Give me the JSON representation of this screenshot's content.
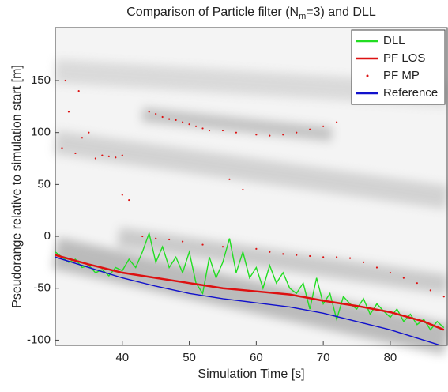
{
  "chart_data": {
    "type": "line",
    "title": [
      "Comparison of Particle filter (N",
      "m",
      "=3) and DLL"
    ],
    "x_label": "Simulation Time [s]",
    "y_label": "Pseudorange relative to simulation start [m]",
    "xlim": [
      30,
      88.5
    ],
    "ylim": [
      -105,
      201
    ],
    "xticks": [
      40,
      50,
      60,
      70,
      80
    ],
    "yticks": [
      -100,
      -50,
      0,
      50,
      100,
      150
    ],
    "legend": "upper right",
    "series": [
      {
        "name": "DLL",
        "color": "#22dd22",
        "style": "line",
        "x": [
          30,
          31,
          32,
          33,
          34,
          35,
          36,
          37,
          38,
          39,
          40,
          41,
          42,
          43,
          44,
          45,
          46,
          47,
          48,
          49,
          50,
          51,
          52,
          53,
          54,
          55,
          56,
          57,
          58,
          59,
          60,
          61,
          62,
          63,
          64,
          65,
          66,
          67,
          68,
          69,
          70,
          71,
          72,
          73,
          74,
          75,
          76,
          77,
          78,
          79,
          80,
          81,
          82,
          83,
          84,
          85,
          86,
          87,
          88
        ],
        "values": [
          -15,
          -20,
          -25,
          -22,
          -30,
          -28,
          -35,
          -32,
          -38,
          -30,
          -33,
          -22,
          -30,
          -15,
          3,
          -25,
          -10,
          -30,
          -20,
          -35,
          -15,
          -45,
          -55,
          -20,
          -40,
          -25,
          -2,
          -35,
          -15,
          -40,
          -30,
          -50,
          -28,
          -45,
          -35,
          -50,
          -55,
          -45,
          -70,
          -40,
          -65,
          -55,
          -80,
          -58,
          -65,
          -70,
          -60,
          -75,
          -65,
          -72,
          -78,
          -70,
          -82,
          -75,
          -85,
          -80,
          -90,
          -82,
          -88
        ]
      },
      {
        "name": "PF LOS",
        "color": "#dd1111",
        "style": "line",
        "x": [
          30,
          35,
          40,
          45,
          50,
          55,
          60,
          65,
          70,
          75,
          80,
          85,
          88
        ],
        "values": [
          -18,
          -27,
          -35,
          -40,
          -45,
          -50,
          -53,
          -56,
          -62,
          -67,
          -73,
          -82,
          -90
        ]
      },
      {
        "name": "PF MP",
        "color": "#dd1111",
        "style": "dots",
        "x": [
          31,
          31.5,
          32,
          33,
          33.5,
          34,
          35,
          36,
          37,
          38,
          39,
          40,
          44,
          45,
          46,
          47,
          48,
          49,
          50,
          51,
          52,
          53,
          55,
          57,
          60,
          62,
          64,
          66,
          68,
          70,
          72,
          43,
          45,
          47,
          49,
          52,
          55,
          60,
          62,
          64,
          66,
          68,
          70,
          72,
          74,
          76,
          78,
          80,
          82,
          84,
          86,
          88,
          40,
          41,
          56,
          58
        ],
        "values": [
          85,
          150,
          120,
          80,
          140,
          95,
          100,
          75,
          78,
          77,
          76,
          78,
          120,
          118,
          115,
          113,
          112,
          110,
          108,
          106,
          104,
          102,
          102,
          100,
          98,
          97,
          98,
          100,
          103,
          106,
          110,
          0,
          -2,
          -3,
          -5,
          -8,
          -10,
          -12,
          -15,
          -17,
          -18,
          -19,
          -20,
          -20,
          -21,
          -25,
          -30,
          -35,
          -40,
          -45,
          -52,
          -58,
          40,
          35,
          55,
          45
        ]
      },
      {
        "name": "Reference",
        "color": "#1111cc",
        "style": "line",
        "x": [
          30,
          35,
          40,
          45,
          50,
          55,
          60,
          65,
          70,
          75,
          80,
          85,
          88
        ],
        "values": [
          -20,
          -30,
          -40,
          -48,
          -55,
          -60,
          -64,
          -68,
          -74,
          -82,
          -90,
          -100,
          -106
        ]
      }
    ]
  }
}
